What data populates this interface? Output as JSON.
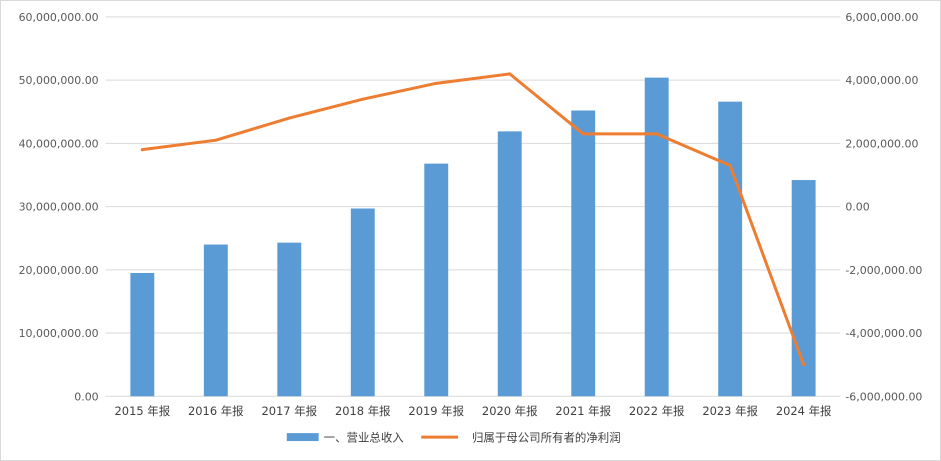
{
  "chart_data": {
    "type": "bar",
    "categories": [
      "2015 年报",
      "2016 年报",
      "2017 年报",
      "2018 年报",
      "2019 年报",
      "2020 年报",
      "2021 年报",
      "2022 年报",
      "2023 年报",
      "2024 年报"
    ],
    "series": [
      {
        "name": "一、营业总收入",
        "type": "bar",
        "axis": "left",
        "color": "#5b9bd5",
        "values": [
          19500000,
          24000000,
          24300000,
          29700000,
          36800000,
          41900000,
          45200000,
          50400000,
          46600000,
          34200000
        ]
      },
      {
        "name": "归属于母公司所有者的净利润",
        "type": "line",
        "axis": "right",
        "color": "#ed7d31",
        "values": [
          1800000,
          2100000,
          2800000,
          3400000,
          3900000,
          4200000,
          2300000,
          2300000,
          1300000,
          -5000000
        ]
      }
    ],
    "y_left": {
      "lim": [
        0,
        60000000
      ],
      "ticks": [
        0,
        10000000,
        20000000,
        30000000,
        40000000,
        50000000,
        60000000
      ],
      "tick_labels": [
        "0.00",
        "10,000,000.00",
        "20,000,000.00",
        "30,000,000.00",
        "40,000,000.00",
        "50,000,000.00",
        "60,000,000.00"
      ]
    },
    "y_right": {
      "lim": [
        -6000000,
        6000000
      ],
      "ticks": [
        -6000000,
        -4000000,
        -2000000,
        0,
        2000000,
        4000000,
        6000000
      ],
      "tick_labels": [
        "-6,000,000.00",
        "-4,000,000.00",
        "-2,000,000.00",
        "0.00",
        "2,000,000.00",
        "4,000,000.00",
        "6,000,000.00"
      ]
    },
    "grid": true,
    "legend_position": "bottom",
    "gridline_color": "#d9d9d9"
  }
}
